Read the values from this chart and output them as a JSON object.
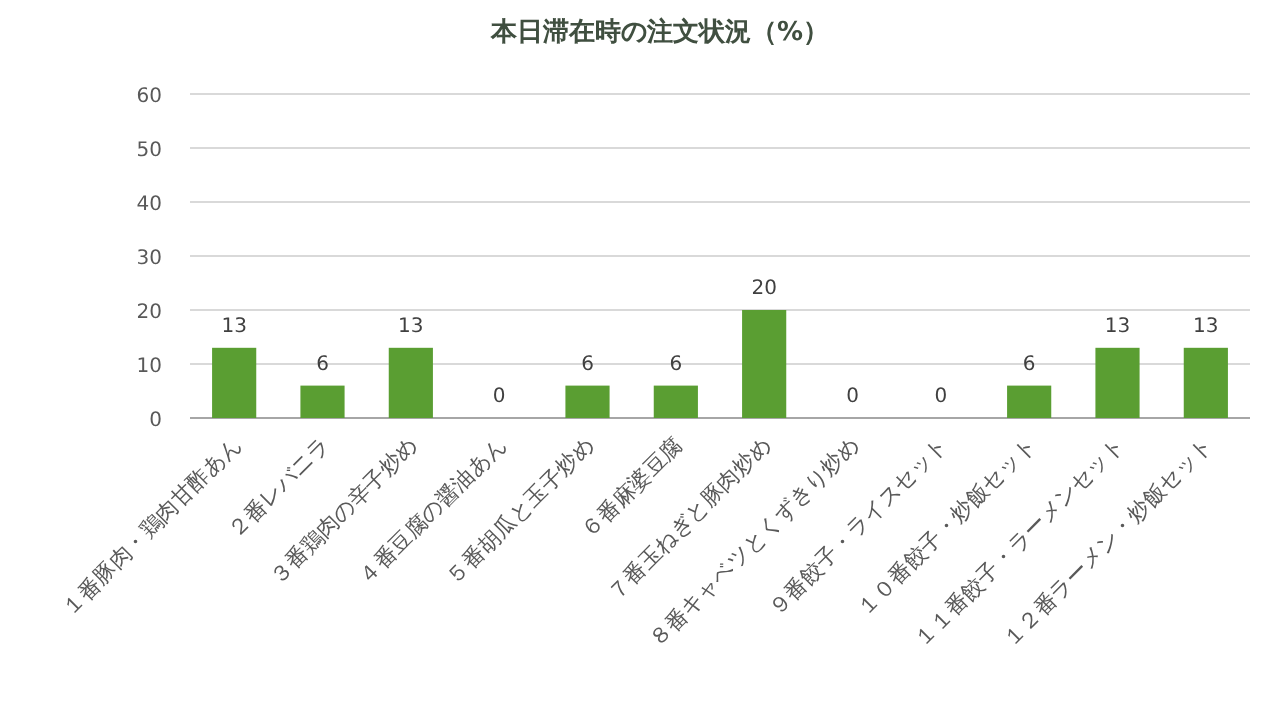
{
  "chart_data": {
    "type": "bar",
    "title": "本日滞在時の注文状況（%）",
    "categories": [
      "１番豚肉・鶏肉甘酢あん",
      "２番レバニラ",
      "３番鶏肉の辛子炒め",
      "４番豆腐の醤油あん",
      "５番胡瓜と玉子炒め",
      "６番麻婆豆腐",
      "７番玉ねぎと豚肉炒め",
      "８番キャベツとくずきり炒め",
      "９番餃子・ライスセット",
      "１０番餃子・炒飯セット",
      "１１番餃子・ラーメンセット",
      "１２番ラーメン・炒飯セット"
    ],
    "values": [
      13,
      6,
      13,
      0,
      6,
      6,
      20,
      0,
      0,
      6,
      13,
      13
    ],
    "color": "#5a9e32",
    "ylim": [
      0,
      60
    ],
    "yticks": [
      0,
      10,
      20,
      30,
      40,
      50,
      60
    ],
    "grid": "y",
    "data_labels": true
  }
}
